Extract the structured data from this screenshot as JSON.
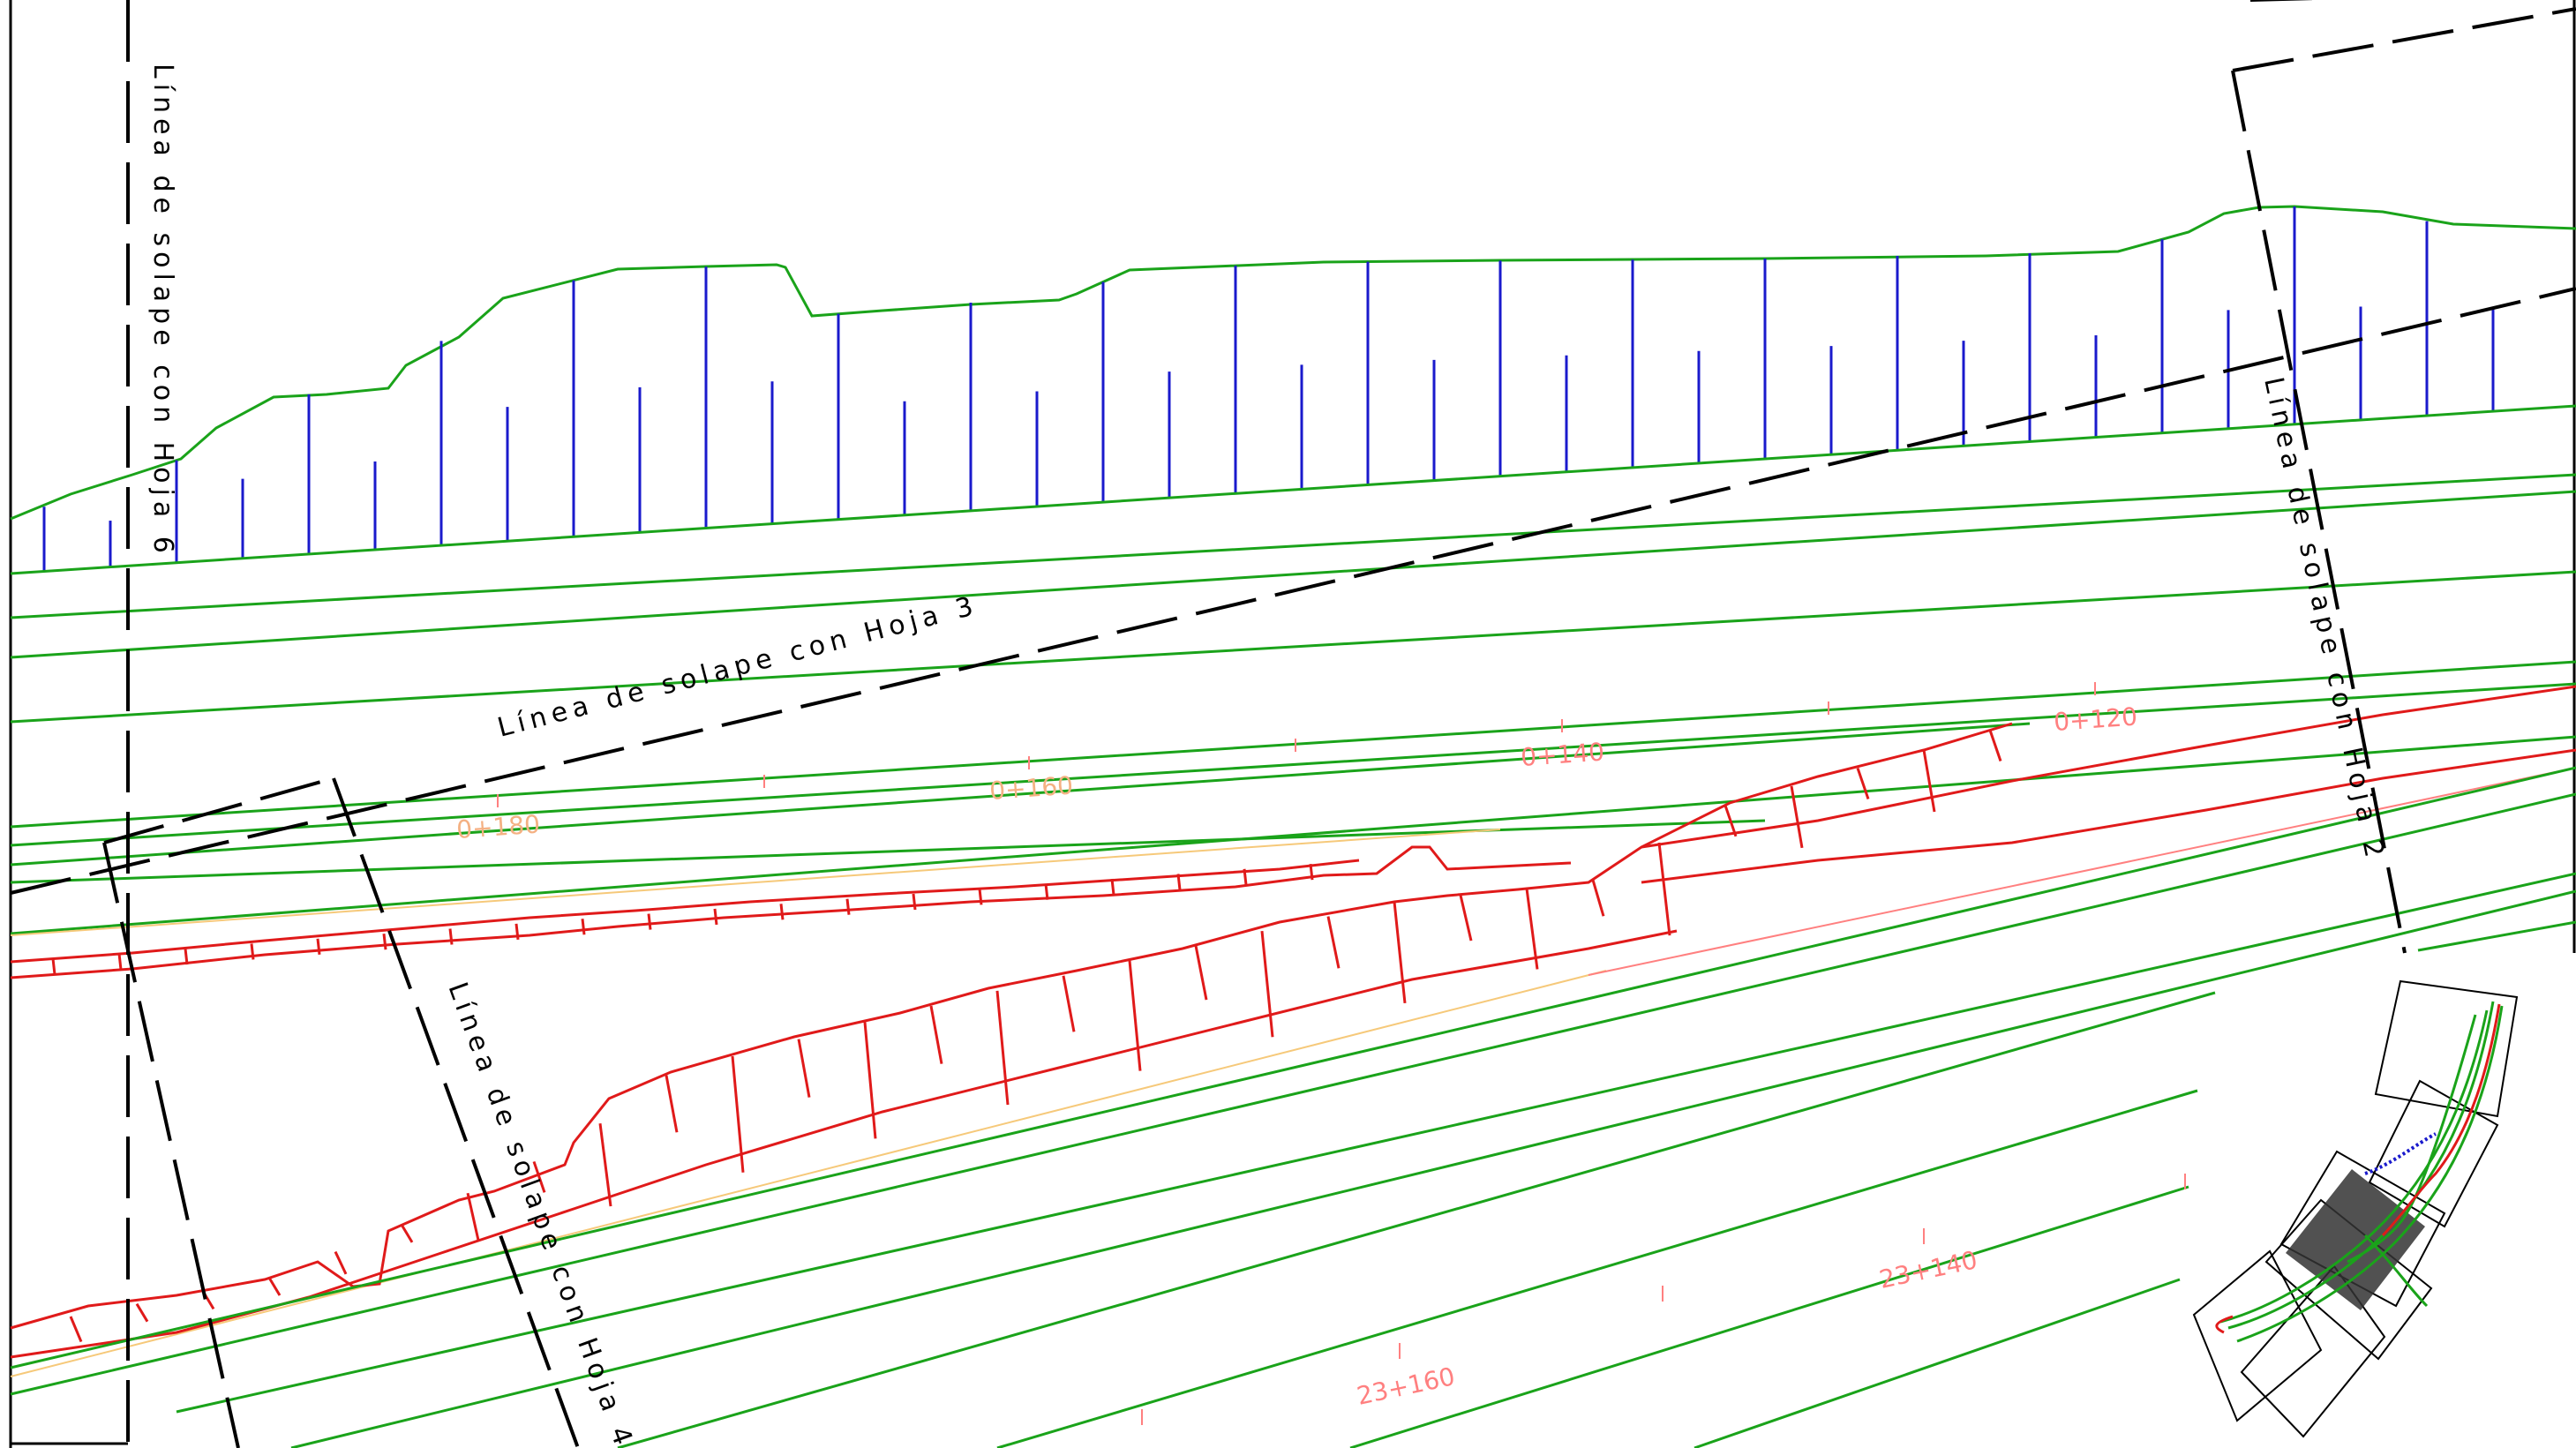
{
  "overlap_labels": {
    "hoja6": "Línea de solape con Hoja 6",
    "hoja3": "Línea de solape con Hoja 3",
    "hoja2": "Línea de solape con Hoja 2",
    "hoja4": "Línea de solape con Hoja 4"
  },
  "stations": {
    "s0180": "0+180",
    "s0160": "0+160",
    "s0140": "0+140",
    "s0120": "0+120",
    "s23160": "23+160",
    "s23140": "23+140"
  },
  "colors": {
    "green_lines": "#1aa31a",
    "blue_hachures": "#1a1acc",
    "red_lines": "#e01a1a",
    "pink_axis": "#ff8080",
    "orange_axis": "#f6c97a",
    "dashed_sheet_lines": "#000000",
    "background": "#ffffff"
  },
  "icons": {
    "key_map": "sheet-index-map-icon"
  }
}
